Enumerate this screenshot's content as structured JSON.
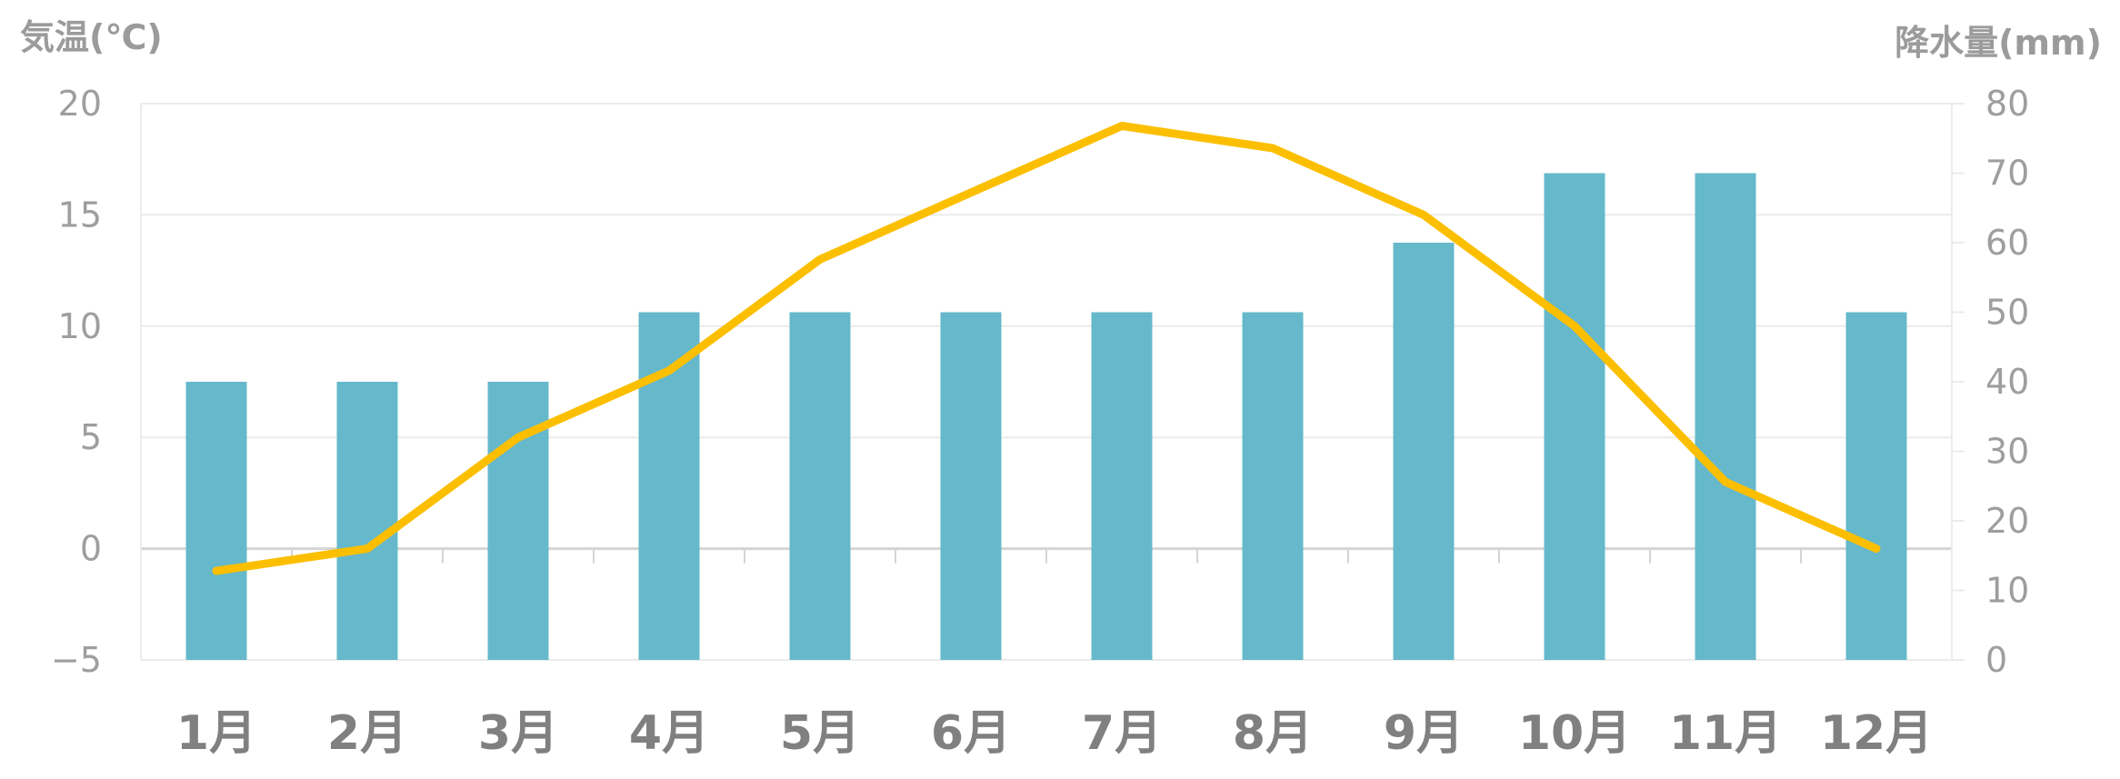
{
  "chart_data": {
    "type": "bar+line",
    "title": "",
    "categories": [
      "1月",
      "2月",
      "3月",
      "4月",
      "5月",
      "6月",
      "7月",
      "8月",
      "9月",
      "10月",
      "11月",
      "12月"
    ],
    "series": [
      {
        "name": "降水量",
        "type": "bar",
        "axis": "right",
        "color": "#66b8cb",
        "values": [
          40,
          40,
          40,
          50,
          50,
          50,
          50,
          50,
          60,
          70,
          70,
          50
        ]
      },
      {
        "name": "気温",
        "type": "line",
        "axis": "left",
        "color": "#fbbf00",
        "values": [
          -1,
          0,
          5,
          8,
          13,
          16,
          19,
          18,
          15,
          10,
          3,
          0
        ]
      }
    ],
    "y_left": {
      "label": "気温(℃)",
      "range": [
        -5,
        20
      ],
      "ticks": [
        20,
        15,
        10,
        5,
        0,
        -5
      ],
      "tick_labels": [
        "20",
        "15",
        "10",
        "5",
        "0",
        "−5"
      ]
    },
    "y_right": {
      "label": "降水量(mm)",
      "range": [
        0,
        80
      ],
      "ticks": [
        80,
        70,
        60,
        50,
        40,
        30,
        20,
        10,
        0
      ],
      "tick_labels": [
        "80",
        "70",
        "60",
        "50",
        "40",
        "30",
        "20",
        "10",
        "0"
      ]
    },
    "grid": true,
    "legend": "none",
    "colors": {
      "grid": "#ebebeb",
      "zero_line": "#d4d4d4",
      "axis_text": "#9e9e9e",
      "category_text": "#808080"
    }
  }
}
